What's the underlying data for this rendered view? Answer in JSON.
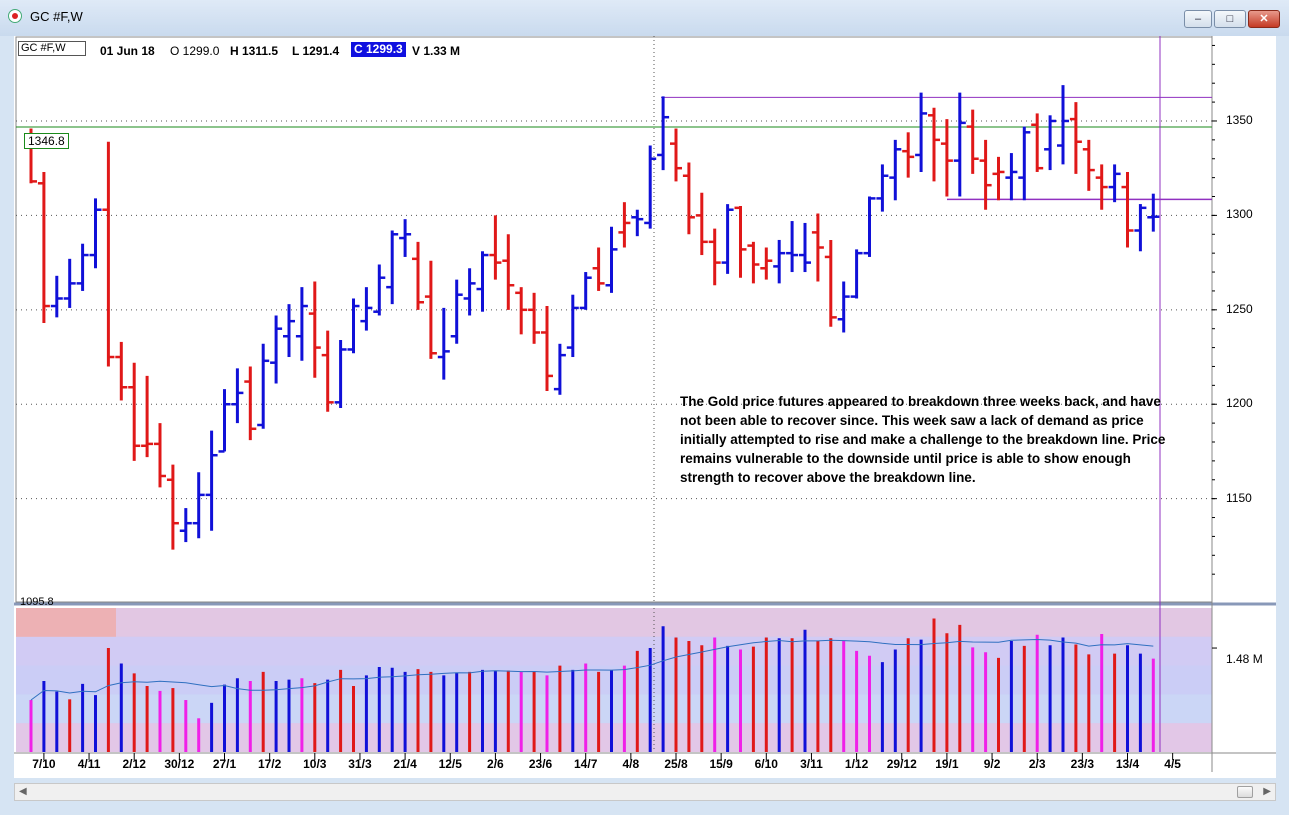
{
  "window": {
    "title": "GC #F,W"
  },
  "header": {
    "symbol": "GC #F,W",
    "date": "01 Jun 18",
    "open": "O 1299.0",
    "high": "H 1311.5",
    "low": "L 1291.4",
    "close": "C 1299.3",
    "volume": "V 1.33 M"
  },
  "price_tag": "1346.8",
  "low_tag": "1095.8",
  "annotation": "The Gold price futures appeared to breakdown three weeks back, and have not been able to recover since.  This week saw a lack of demand as price initially attempted to rise and make a challenge to the breakdown line.  Price remains vulnerable to the downside until price is able to show enough strength to recover above the breakdown line.",
  "colors": {
    "up": "#1010d8",
    "down": "#e01818",
    "vol_up": "#1010d8",
    "vol_down": "#e01818",
    "vol_magenta": "#f020e8",
    "support_line": "#1a8a1a",
    "resistance_line": "#9030c0",
    "close_highlight": "#1010e0"
  },
  "chart_data": [
    {
      "type": "ohlc",
      "title": "",
      "ylim": [
        1095.8,
        1395
      ],
      "y_ticks": [
        1150,
        1200,
        1250,
        1300,
        1350
      ],
      "x_tick_labels": [
        "7/10",
        "4/11",
        "2/12",
        "30/12",
        "27/1",
        "17/2",
        "10/3",
        "31/3",
        "21/4",
        "12/5",
        "2/6",
        "23/6",
        "14/7",
        "4/8",
        "25/8",
        "15/9",
        "6/10",
        "3/11",
        "1/12",
        "29/12",
        "19/1",
        "9/2",
        "2/3",
        "23/3",
        "13/4",
        "4/5"
      ],
      "lines": [
        {
          "name": "1346.8",
          "value": 1346.8
        }
      ],
      "bars": [
        {
          "dir": "down",
          "h": 1346,
          "l": 1317,
          "o": 1341,
          "c": 1318
        },
        {
          "dir": "down",
          "h": 1323,
          "l": 1243,
          "o": 1317,
          "c": 1252
        },
        {
          "dir": "up",
          "h": 1268,
          "l": 1246,
          "o": 1252,
          "c": 1256
        },
        {
          "dir": "up",
          "h": 1277,
          "l": 1251,
          "o": 1256,
          "c": 1264
        },
        {
          "dir": "up",
          "h": 1285,
          "l": 1260,
          "o": 1264,
          "c": 1279
        },
        {
          "dir": "up",
          "h": 1309,
          "l": 1272,
          "o": 1279,
          "c": 1303
        },
        {
          "dir": "down",
          "h": 1339,
          "l": 1220,
          "o": 1303,
          "c": 1225
        },
        {
          "dir": "down",
          "h": 1233,
          "l": 1202,
          "o": 1225,
          "c": 1209
        },
        {
          "dir": "down",
          "h": 1222,
          "l": 1170,
          "o": 1209,
          "c": 1178
        },
        {
          "dir": "down",
          "h": 1215,
          "l": 1172,
          "o": 1178,
          "c": 1179
        },
        {
          "dir": "down",
          "h": 1190,
          "l": 1156,
          "o": 1179,
          "c": 1162
        },
        {
          "dir": "down",
          "h": 1168,
          "l": 1123,
          "o": 1160,
          "c": 1137
        },
        {
          "dir": "up",
          "h": 1145,
          "l": 1127,
          "o": 1133,
          "c": 1137
        },
        {
          "dir": "up",
          "h": 1164,
          "l": 1129,
          "o": 1137,
          "c": 1152
        },
        {
          "dir": "up",
          "h": 1186,
          "l": 1133,
          "o": 1152,
          "c": 1173
        },
        {
          "dir": "up",
          "h": 1208,
          "l": 1175,
          "o": 1175,
          "c": 1200
        },
        {
          "dir": "up",
          "h": 1219,
          "l": 1190,
          "o": 1200,
          "c": 1206
        },
        {
          "dir": "down",
          "h": 1220,
          "l": 1181,
          "o": 1212,
          "c": 1187
        },
        {
          "dir": "up",
          "h": 1232,
          "l": 1187,
          "o": 1189,
          "c": 1223
        },
        {
          "dir": "up",
          "h": 1247,
          "l": 1211,
          "o": 1222,
          "c": 1240
        },
        {
          "dir": "up",
          "h": 1253,
          "l": 1225,
          "o": 1236,
          "c": 1244
        },
        {
          "dir": "up",
          "h": 1262,
          "l": 1223,
          "o": 1236,
          "c": 1252
        },
        {
          "dir": "down",
          "h": 1265,
          "l": 1214,
          "o": 1248,
          "c": 1230
        },
        {
          "dir": "down",
          "h": 1239,
          "l": 1196,
          "o": 1226,
          "c": 1201
        },
        {
          "dir": "up",
          "h": 1234,
          "l": 1198,
          "o": 1201,
          "c": 1229
        },
        {
          "dir": "up",
          "h": 1256,
          "l": 1227,
          "o": 1229,
          "c": 1252
        },
        {
          "dir": "up",
          "h": 1262,
          "l": 1239,
          "o": 1244,
          "c": 1251
        },
        {
          "dir": "up",
          "h": 1274,
          "l": 1247,
          "o": 1249,
          "c": 1267
        },
        {
          "dir": "up",
          "h": 1292,
          "l": 1253,
          "o": 1262,
          "c": 1290
        },
        {
          "dir": "up",
          "h": 1298,
          "l": 1278,
          "o": 1288,
          "c": 1290
        },
        {
          "dir": "down",
          "h": 1286,
          "l": 1250,
          "o": 1277,
          "c": 1254
        },
        {
          "dir": "down",
          "h": 1276,
          "l": 1224,
          "o": 1257,
          "c": 1227
        },
        {
          "dir": "up",
          "h": 1251,
          "l": 1213,
          "o": 1225,
          "c": 1228
        },
        {
          "dir": "up",
          "h": 1266,
          "l": 1232,
          "o": 1236,
          "c": 1258
        },
        {
          "dir": "up",
          "h": 1272,
          "l": 1247,
          "o": 1256,
          "c": 1264
        },
        {
          "dir": "up",
          "h": 1281,
          "l": 1249,
          "o": 1261,
          "c": 1279
        },
        {
          "dir": "down",
          "h": 1300,
          "l": 1266,
          "o": 1279,
          "c": 1275
        },
        {
          "dir": "down",
          "h": 1290,
          "l": 1250,
          "o": 1276,
          "c": 1263
        },
        {
          "dir": "down",
          "h": 1262,
          "l": 1237,
          "o": 1259,
          "c": 1250
        },
        {
          "dir": "down",
          "h": 1259,
          "l": 1232,
          "o": 1250,
          "c": 1238
        },
        {
          "dir": "down",
          "h": 1252,
          "l": 1207,
          "o": 1238,
          "c": 1215
        },
        {
          "dir": "up",
          "h": 1232,
          "l": 1205,
          "o": 1208,
          "c": 1226
        },
        {
          "dir": "up",
          "h": 1258,
          "l": 1225,
          "o": 1230,
          "c": 1251
        },
        {
          "dir": "up",
          "h": 1270,
          "l": 1250,
          "o": 1251,
          "c": 1267
        },
        {
          "dir": "down",
          "h": 1283,
          "l": 1260,
          "o": 1272,
          "c": 1264
        },
        {
          "dir": "up",
          "h": 1294,
          "l": 1259,
          "o": 1263,
          "c": 1282
        },
        {
          "dir": "down",
          "h": 1307,
          "l": 1283,
          "o": 1291,
          "c": 1296
        },
        {
          "dir": "up",
          "h": 1303,
          "l": 1289,
          "o": 1299,
          "c": 1298
        },
        {
          "dir": "up",
          "h": 1337,
          "l": 1293,
          "o": 1296,
          "c": 1330
        },
        {
          "dir": "up",
          "h": 1363,
          "l": 1324,
          "o": 1332,
          "c": 1352
        },
        {
          "dir": "down",
          "h": 1346,
          "l": 1318,
          "o": 1338,
          "c": 1325
        },
        {
          "dir": "down",
          "h": 1328,
          "l": 1290,
          "o": 1321,
          "c": 1299
        },
        {
          "dir": "down",
          "h": 1312,
          "l": 1279,
          "o": 1300,
          "c": 1286
        },
        {
          "dir": "down",
          "h": 1293,
          "l": 1263,
          "o": 1286,
          "c": 1275
        },
        {
          "dir": "up",
          "h": 1306,
          "l": 1269,
          "o": 1275,
          "c": 1303
        },
        {
          "dir": "down",
          "h": 1305,
          "l": 1267,
          "o": 1304,
          "c": 1282
        },
        {
          "dir": "down",
          "h": 1286,
          "l": 1264,
          "o": 1284,
          "c": 1274
        },
        {
          "dir": "down",
          "h": 1283,
          "l": 1266,
          "o": 1272,
          "c": 1276
        },
        {
          "dir": "up",
          "h": 1287,
          "l": 1264,
          "o": 1273,
          "c": 1280
        },
        {
          "dir": "up",
          "h": 1297,
          "l": 1270,
          "o": 1280,
          "c": 1279
        },
        {
          "dir": "up",
          "h": 1296,
          "l": 1270,
          "o": 1279,
          "c": 1275
        },
        {
          "dir": "down",
          "h": 1301,
          "l": 1265,
          "o": 1291,
          "c": 1283
        },
        {
          "dir": "down",
          "h": 1287,
          "l": 1241,
          "o": 1278,
          "c": 1246
        },
        {
          "dir": "up",
          "h": 1265,
          "l": 1238,
          "o": 1245,
          "c": 1257
        },
        {
          "dir": "up",
          "h": 1282,
          "l": 1256,
          "o": 1257,
          "c": 1280
        },
        {
          "dir": "up",
          "h": 1310,
          "l": 1278,
          "o": 1280,
          "c": 1309
        },
        {
          "dir": "up",
          "h": 1327,
          "l": 1302,
          "o": 1309,
          "c": 1321
        },
        {
          "dir": "up",
          "h": 1340,
          "l": 1308,
          "o": 1320,
          "c": 1335
        },
        {
          "dir": "down",
          "h": 1344,
          "l": 1320,
          "o": 1334,
          "c": 1331
        },
        {
          "dir": "up",
          "h": 1365,
          "l": 1323,
          "o": 1332,
          "c": 1354
        },
        {
          "dir": "down",
          "h": 1357,
          "l": 1318,
          "o": 1353,
          "c": 1340
        },
        {
          "dir": "down",
          "h": 1351,
          "l": 1310,
          "o": 1338,
          "c": 1329
        },
        {
          "dir": "up",
          "h": 1365,
          "l": 1310,
          "o": 1329,
          "c": 1349
        },
        {
          "dir": "down",
          "h": 1356,
          "l": 1322,
          "o": 1347,
          "c": 1330
        },
        {
          "dir": "down",
          "h": 1340,
          "l": 1303,
          "o": 1329,
          "c": 1316
        },
        {
          "dir": "down",
          "h": 1331,
          "l": 1308,
          "o": 1322,
          "c": 1323
        },
        {
          "dir": "up",
          "h": 1333,
          "l": 1308,
          "o": 1320,
          "c": 1323
        },
        {
          "dir": "up",
          "h": 1347,
          "l": 1308,
          "o": 1320,
          "c": 1344
        },
        {
          "dir": "down",
          "h": 1354,
          "l": 1323,
          "o": 1348,
          "c": 1325
        },
        {
          "dir": "up",
          "h": 1353,
          "l": 1324,
          "o": 1335,
          "c": 1350
        },
        {
          "dir": "up",
          "h": 1369,
          "l": 1327,
          "o": 1337,
          "c": 1350
        },
        {
          "dir": "down",
          "h": 1360,
          "l": 1322,
          "o": 1351,
          "c": 1339
        },
        {
          "dir": "down",
          "h": 1340,
          "l": 1313,
          "o": 1335,
          "c": 1324
        },
        {
          "dir": "down",
          "h": 1327,
          "l": 1303,
          "o": 1320,
          "c": 1315
        },
        {
          "dir": "up",
          "h": 1327,
          "l": 1307,
          "o": 1315,
          "c": 1322
        },
        {
          "dir": "down",
          "h": 1323,
          "l": 1283,
          "o": 1315,
          "c": 1292
        },
        {
          "dir": "up",
          "h": 1306,
          "l": 1281,
          "o": 1292,
          "c": 1304
        },
        {
          "dir": "up",
          "h": 1311.5,
          "l": 1291.4,
          "o": 1299,
          "c": 1299.3
        }
      ]
    },
    {
      "type": "bar",
      "title": "",
      "ylabel_tick": "1.48 M",
      "volume_M": [
        0.74,
        1.01,
        0.86,
        0.75,
        0.97,
        0.81,
        1.48,
        1.26,
        1.12,
        0.94,
        0.87,
        0.91,
        0.74,
        0.48,
        0.7,
        0.96,
        1.05,
        1.01,
        1.14,
        1.01,
        1.03,
        1.05,
        0.98,
        1.03,
        1.17,
        0.94,
        1.09,
        1.21,
        1.2,
        1.14,
        1.18,
        1.14,
        1.09,
        1.13,
        1.14,
        1.17,
        1.16,
        1.16,
        1.14,
        1.15,
        1.09,
        1.23,
        1.17,
        1.26,
        1.14,
        1.16,
        1.23,
        1.44,
        1.48,
        1.79,
        1.63,
        1.58,
        1.52,
        1.63,
        1.51,
        1.46,
        1.5,
        1.63,
        1.62,
        1.62,
        1.74,
        1.58,
        1.62,
        1.58,
        1.44,
        1.37,
        1.28,
        1.46,
        1.62,
        1.6,
        1.9,
        1.69,
        1.81,
        1.49,
        1.42,
        1.34,
        1.58,
        1.51,
        1.67,
        1.52,
        1.63,
        1.53,
        1.39,
        1.68,
        1.4,
        1.52,
        1.4,
        1.33
      ],
      "volume_colors": [
        "magenta",
        "blue",
        "blue",
        "red",
        "blue",
        "blue",
        "red",
        "blue",
        "red",
        "red",
        "magenta",
        "red",
        "magenta",
        "magenta",
        "blue",
        "blue",
        "blue",
        "magenta",
        "red",
        "blue",
        "blue",
        "magenta",
        "red",
        "blue",
        "red",
        "red",
        "blue",
        "blue",
        "blue",
        "blue",
        "red",
        "red",
        "blue",
        "blue",
        "red",
        "blue",
        "blue",
        "red",
        "magenta",
        "red",
        "magenta",
        "red",
        "blue",
        "magenta",
        "red",
        "blue",
        "magenta",
        "red",
        "blue",
        "blue",
        "red",
        "red",
        "red",
        "magenta",
        "blue",
        "magenta",
        "red",
        "red",
        "blue",
        "red",
        "blue",
        "red",
        "red",
        "magenta",
        "magenta",
        "magenta",
        "blue",
        "blue",
        "red",
        "blue",
        "red",
        "red",
        "red",
        "magenta",
        "magenta",
        "red",
        "blue",
        "red",
        "magenta",
        "blue",
        "blue",
        "red",
        "red",
        "magenta",
        "red",
        "blue",
        "blue",
        "magenta"
      ]
    }
  ]
}
